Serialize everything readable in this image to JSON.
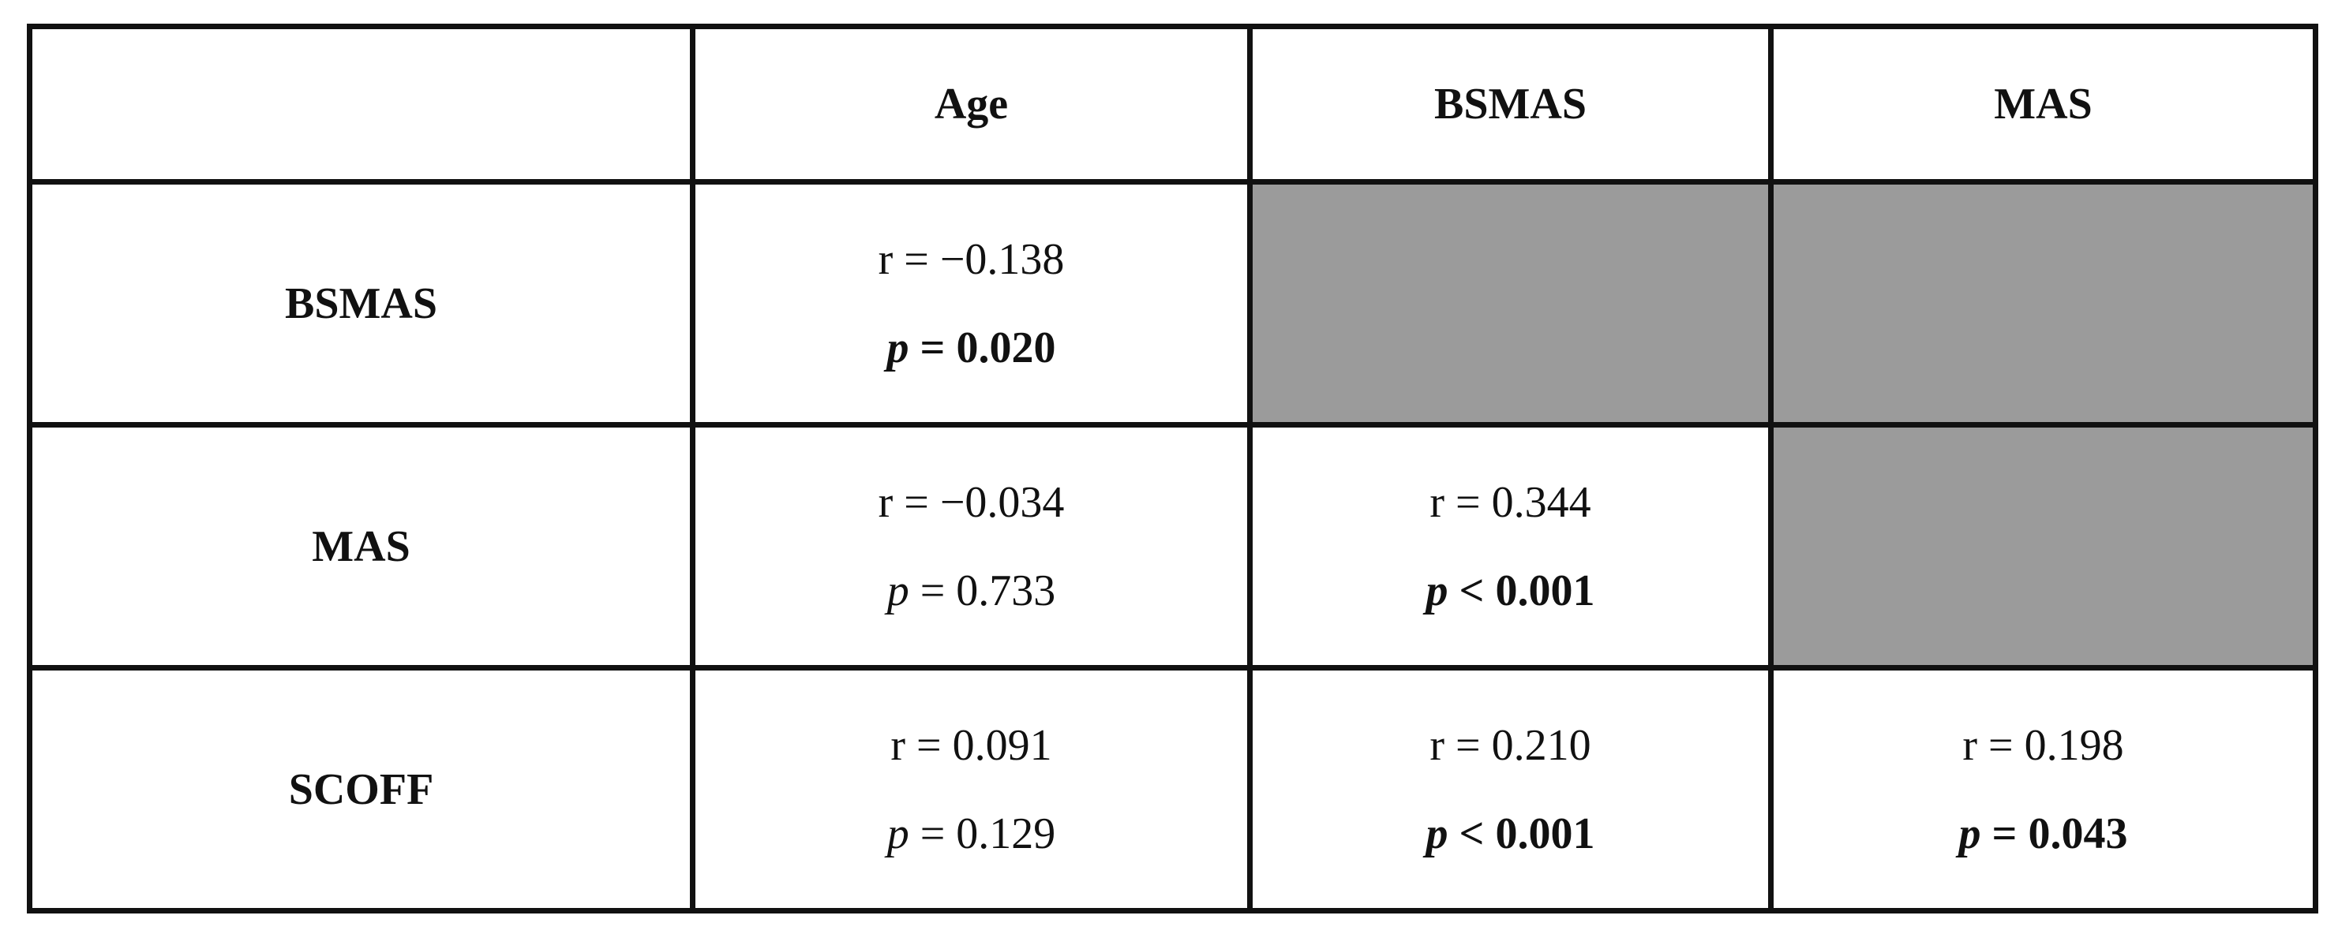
{
  "table": {
    "header": {
      "corner": "",
      "columns": [
        "Age",
        "BSMAS",
        "MAS"
      ]
    },
    "rows": [
      {
        "label": "BSMAS",
        "cells": [
          {
            "r_text": "r = −0.138",
            "p_symbol": "p",
            "p_rest": " = 0.020",
            "p_bold": true,
            "shaded": false
          },
          {
            "r_text": "",
            "p_symbol": "",
            "p_rest": "",
            "p_bold": false,
            "shaded": true
          },
          {
            "r_text": "",
            "p_symbol": "",
            "p_rest": "",
            "p_bold": false,
            "shaded": true
          }
        ]
      },
      {
        "label": "MAS",
        "cells": [
          {
            "r_text": "r = −0.034",
            "p_symbol": "p",
            "p_rest": " = 0.733",
            "p_bold": false,
            "shaded": false
          },
          {
            "r_text": "r = 0.344",
            "p_symbol": "p",
            "p_rest": " < 0.001",
            "p_bold": true,
            "shaded": false
          },
          {
            "r_text": "",
            "p_symbol": "",
            "p_rest": "",
            "p_bold": false,
            "shaded": true
          }
        ]
      },
      {
        "label": "SCOFF",
        "cells": [
          {
            "r_text": "r = 0.091",
            "p_symbol": "p",
            "p_rest": " = 0.129",
            "p_bold": false,
            "shaded": false
          },
          {
            "r_text": "r = 0.210",
            "p_symbol": "p",
            "p_rest": " < 0.001",
            "p_bold": true,
            "shaded": false
          },
          {
            "r_text": "r = 0.198",
            "p_symbol": "p",
            "p_rest": " = 0.043",
            "p_bold": true,
            "shaded": false
          }
        ]
      }
    ],
    "shade_color": "#9b9b9b",
    "border_color": "#111111"
  }
}
